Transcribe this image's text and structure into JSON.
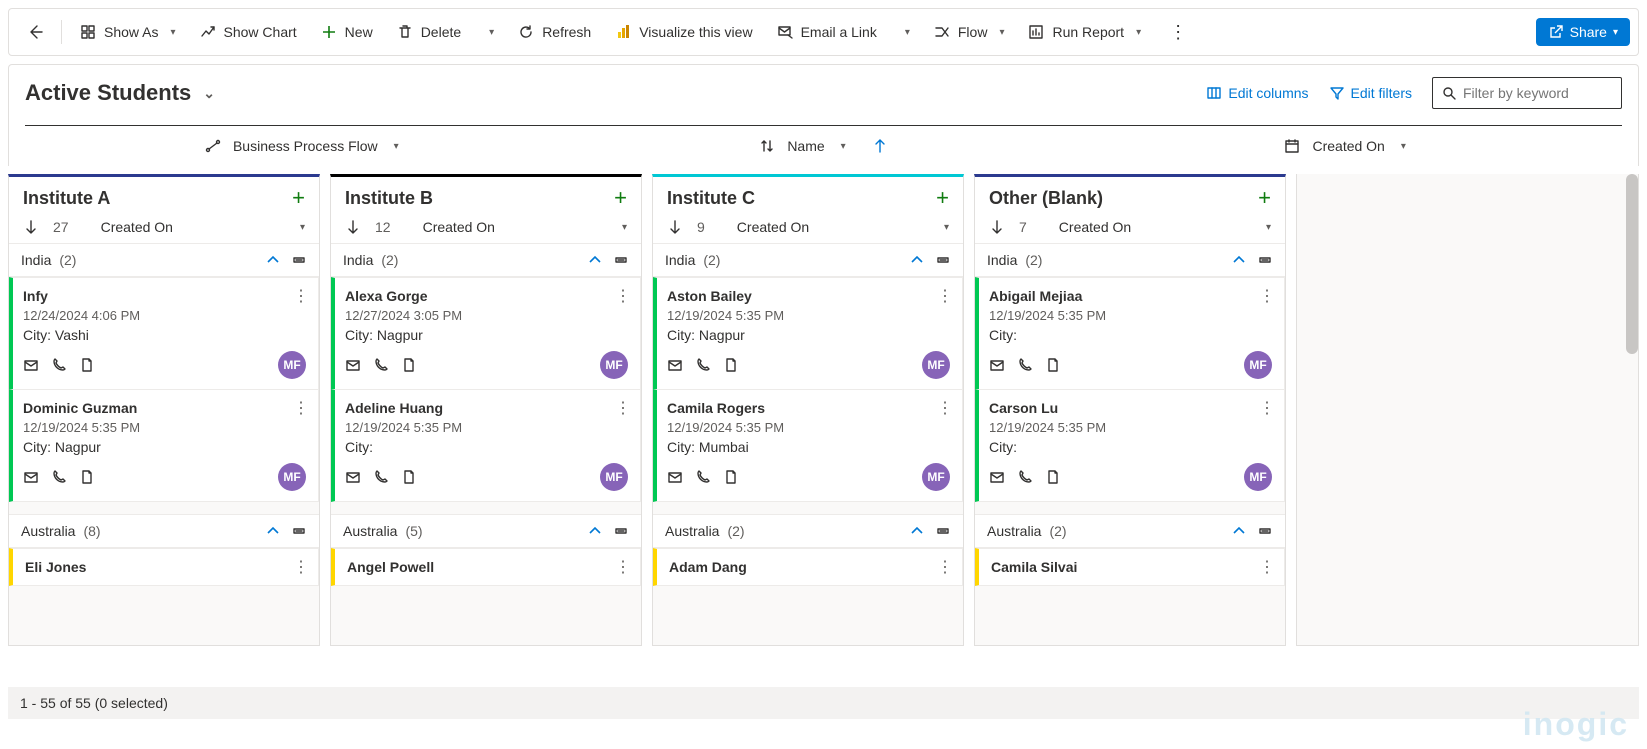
{
  "colors": {
    "primary": "#0078d4",
    "green": "#107c10",
    "purple": "#8764b8",
    "lane_border_a": "#2b3a8f",
    "lane_border_b": "#000000",
    "lane_border_c": "#00c8d4",
    "lane_border_other": "#2b3a8f",
    "group_india": "#00c853",
    "group_australia": "#ffd600"
  },
  "commandBar": {
    "showAs": "Show As",
    "showChart": "Show Chart",
    "new": "New",
    "delete": "Delete",
    "refresh": "Refresh",
    "visualize": "Visualize this view",
    "emailLink": "Email a Link",
    "flow": "Flow",
    "runReport": "Run Report",
    "share": "Share"
  },
  "view": {
    "title": "Active Students",
    "editColumns": "Edit columns",
    "editFilters": "Edit filters",
    "filterPlaceholder": "Filter by keyword"
  },
  "sortStrip": {
    "bpf": "Business Process Flow",
    "name": "Name",
    "createdOn": "Created On"
  },
  "lanes": [
    {
      "key": "a",
      "title": "Institute A",
      "count": "27",
      "sortLabel": "Created On",
      "topColor": "#2b3a8f",
      "groups": [
        {
          "name": "India",
          "count": "(2)",
          "accent": "#00c853",
          "cards": [
            {
              "name": "Infy",
              "date": "12/24/2024 4:06 PM",
              "cityLabel": "City:",
              "city": "Vashi",
              "avatar": "MF"
            },
            {
              "name": "Dominic Guzman",
              "date": "12/19/2024 5:35 PM",
              "cityLabel": "City:",
              "city": "Nagpur",
              "avatar": "MF"
            }
          ]
        },
        {
          "name": "Australia",
          "count": "(8)",
          "accent": "#ffd600",
          "mini": {
            "name": "Eli Jones"
          }
        }
      ]
    },
    {
      "key": "b",
      "title": "Institute B",
      "count": "12",
      "sortLabel": "Created On",
      "topColor": "#000000",
      "groups": [
        {
          "name": "India",
          "count": "(2)",
          "accent": "#00c853",
          "cards": [
            {
              "name": "Alexa Gorge",
              "date": "12/27/2024 3:05 PM",
              "cityLabel": "City:",
              "city": "Nagpur",
              "avatar": "MF"
            },
            {
              "name": "Adeline Huang",
              "date": "12/19/2024 5:35 PM",
              "cityLabel": "City:",
              "city": "",
              "avatar": "MF"
            }
          ]
        },
        {
          "name": "Australia",
          "count": "(5)",
          "accent": "#ffd600",
          "mini": {
            "name": "Angel Powell"
          }
        }
      ]
    },
    {
      "key": "c",
      "title": "Institute C",
      "count": "9",
      "sortLabel": "Created On",
      "topColor": "#00c8d4",
      "groups": [
        {
          "name": "India",
          "count": "(2)",
          "accent": "#00c853",
          "cards": [
            {
              "name": "Aston Bailey",
              "date": "12/19/2024 5:35 PM",
              "cityLabel": "City:",
              "city": "Nagpur",
              "avatar": "MF"
            },
            {
              "name": "Camila Rogers",
              "date": "12/19/2024 5:35 PM",
              "cityLabel": "City:",
              "city": "Mumbai",
              "avatar": "MF"
            }
          ]
        },
        {
          "name": "Australia",
          "count": "(2)",
          "accent": "#ffd600",
          "mini": {
            "name": "Adam Dang"
          }
        }
      ]
    },
    {
      "key": "other",
      "title": "Other (Blank)",
      "count": "7",
      "sortLabel": "Created On",
      "topColor": "#2b3a8f",
      "groups": [
        {
          "name": "India",
          "count": "(2)",
          "accent": "#00c853",
          "cards": [
            {
              "name": "Abigail Mejiaa",
              "date": "12/19/2024 5:35 PM",
              "cityLabel": "City:",
              "city": "",
              "avatar": "MF"
            },
            {
              "name": "Carson Lu",
              "date": "12/19/2024 5:35 PM",
              "cityLabel": "City:",
              "city": "",
              "avatar": "MF"
            }
          ]
        },
        {
          "name": "Australia",
          "count": "(2)",
          "accent": "#ffd600",
          "mini": {
            "name": "Camila Silvai"
          }
        }
      ]
    }
  ],
  "footer": {
    "status": "1 - 55 of 55 (0 selected)"
  },
  "watermark": "inogic"
}
